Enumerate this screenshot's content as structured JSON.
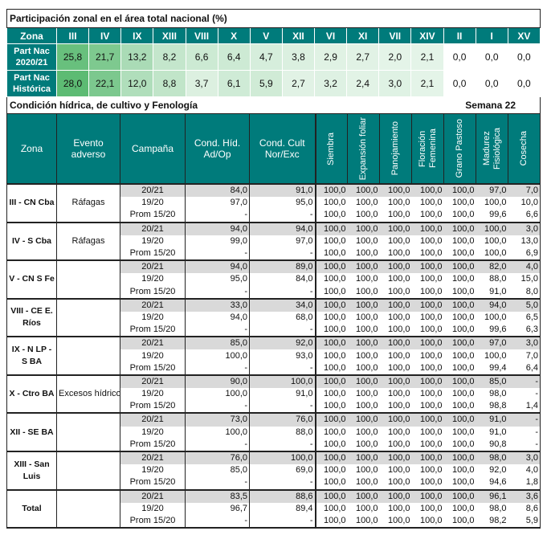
{
  "top": {
    "title": "Participación zonal en el área total nacional (%)",
    "header_label": "Zona",
    "zones": [
      "III",
      "IV",
      "IX",
      "XIII",
      "VIII",
      "X",
      "V",
      "XII",
      "VI",
      "XI",
      "VII",
      "XIV",
      "II",
      "I",
      "XV"
    ],
    "rows": [
      {
        "label": [
          "Part Nac",
          "2020/21"
        ],
        "values": [
          "25,8",
          "21,7",
          "13,2",
          "8,2",
          "6,6",
          "6,4",
          "4,7",
          "3,8",
          "2,9",
          "2,7",
          "2,0",
          "2,1",
          "0,0",
          "0,0",
          "0,0"
        ]
      },
      {
        "label": [
          "Part Nac",
          "Histórica"
        ],
        "values": [
          "28,0",
          "22,1",
          "12,0",
          "8,8",
          "3,7",
          "6,1",
          "5,9",
          "2,7",
          "3,2",
          "2,4",
          "3,0",
          "2,1",
          "0,0",
          "0,0",
          "0,0"
        ]
      }
    ],
    "heat_colors": {
      "high": "#5dbb73",
      "low": "#ffffff"
    }
  },
  "section": {
    "title": "Condición hídrica, de cultivo y Fenología",
    "week": "Semana 22"
  },
  "headers": [
    "Zona",
    "Evento adverso",
    "Campaña",
    "Cond. Híd. Ad/Op",
    "Cond. Cult Nor/Exc",
    "Siembra",
    "Expansión foliar",
    "Panojamiento",
    "Floración Femenina",
    "Grano Pastoso",
    "Madurez Fisiológica",
    "Cosecha"
  ],
  "colors": {
    "header": "#007b7b",
    "shade": "#d9d9d9"
  },
  "zones": [
    {
      "zona": "III - CN Cba",
      "evento": "Ráfagas",
      "rows": [
        [
          "20/21",
          "84,0",
          "91,0",
          "100,0",
          "100,0",
          "100,0",
          "100,0",
          "100,0",
          "97,0",
          "7,0"
        ],
        [
          "19/20",
          "97,0",
          "95,0",
          "100,0",
          "100,0",
          "100,0",
          "100,0",
          "100,0",
          "100,0",
          "10,0"
        ],
        [
          "Prom 15/20",
          "-",
          "-",
          "100,0",
          "100,0",
          "100,0",
          "100,0",
          "100,0",
          "99,6",
          "6,6"
        ]
      ]
    },
    {
      "zona": "IV - S Cba",
      "evento": "Ráfagas",
      "rows": [
        [
          "20/21",
          "94,0",
          "94,0",
          "100,0",
          "100,0",
          "100,0",
          "100,0",
          "100,0",
          "100,0",
          "3,0"
        ],
        [
          "19/20",
          "99,0",
          "97,0",
          "100,0",
          "100,0",
          "100,0",
          "100,0",
          "100,0",
          "100,0",
          "13,0"
        ],
        [
          "Prom 15/20",
          "-",
          "-",
          "100,0",
          "100,0",
          "100,0",
          "100,0",
          "100,0",
          "100,0",
          "6,9"
        ]
      ]
    },
    {
      "zona": "V - CN S Fe",
      "evento": "",
      "rows": [
        [
          "20/21",
          "94,0",
          "89,0",
          "100,0",
          "100,0",
          "100,0",
          "100,0",
          "100,0",
          "82,0",
          "4,0"
        ],
        [
          "19/20",
          "95,0",
          "84,0",
          "100,0",
          "100,0",
          "100,0",
          "100,0",
          "100,0",
          "88,0",
          "15,0"
        ],
        [
          "Prom 15/20",
          "-",
          "-",
          "100,0",
          "100,0",
          "100,0",
          "100,0",
          "100,0",
          "91,0",
          "8,0"
        ]
      ]
    },
    {
      "zona": "VIII - CE E. Ríos",
      "evento": "",
      "rows": [
        [
          "20/21",
          "33,0",
          "34,0",
          "100,0",
          "100,0",
          "100,0",
          "100,0",
          "100,0",
          "94,0",
          "5,0"
        ],
        [
          "19/20",
          "94,0",
          "68,0",
          "100,0",
          "100,0",
          "100,0",
          "100,0",
          "100,0",
          "100,0",
          "6,5"
        ],
        [
          "Prom 15/20",
          "-",
          "-",
          "100,0",
          "100,0",
          "100,0",
          "100,0",
          "100,0",
          "99,6",
          "6,3"
        ]
      ]
    },
    {
      "zona": "IX - N LP - S BA",
      "evento": "",
      "rows": [
        [
          "20/21",
          "85,0",
          "92,0",
          "100,0",
          "100,0",
          "100,0",
          "100,0",
          "100,0",
          "97,0",
          "3,0"
        ],
        [
          "19/20",
          "100,0",
          "93,0",
          "100,0",
          "100,0",
          "100,0",
          "100,0",
          "100,0",
          "100,0",
          "7,0"
        ],
        [
          "Prom 15/20",
          "-",
          "-",
          "100,0",
          "100,0",
          "100,0",
          "100,0",
          "100,0",
          "99,4",
          "6,4"
        ]
      ]
    },
    {
      "zona": "X - Ctro BA",
      "evento": "Excesos hídricos",
      "rows": [
        [
          "20/21",
          "90,0",
          "100,0",
          "100,0",
          "100,0",
          "100,0",
          "100,0",
          "100,0",
          "85,0",
          "-"
        ],
        [
          "19/20",
          "100,0",
          "91,0",
          "100,0",
          "100,0",
          "100,0",
          "100,0",
          "100,0",
          "98,0",
          "-"
        ],
        [
          "Prom 15/20",
          "-",
          "-",
          "100,0",
          "100,0",
          "100,0",
          "100,0",
          "100,0",
          "98,8",
          "1,4"
        ]
      ]
    },
    {
      "zona": "XII - SE BA",
      "evento": "",
      "rows": [
        [
          "20/21",
          "73,0",
          "76,0",
          "100,0",
          "100,0",
          "100,0",
          "100,0",
          "100,0",
          "91,0",
          "-"
        ],
        [
          "19/20",
          "100,0",
          "88,0",
          "100,0",
          "100,0",
          "100,0",
          "100,0",
          "100,0",
          "91,0",
          "-"
        ],
        [
          "Prom 15/20",
          "-",
          "-",
          "100,0",
          "100,0",
          "100,0",
          "100,0",
          "100,0",
          "90,8",
          "-"
        ]
      ]
    },
    {
      "zona": "XIII - San Luis",
      "evento": "",
      "rows": [
        [
          "20/21",
          "76,0",
          "100,0",
          "100,0",
          "100,0",
          "100,0",
          "100,0",
          "100,0",
          "98,0",
          "3,0"
        ],
        [
          "19/20",
          "85,0",
          "69,0",
          "100,0",
          "100,0",
          "100,0",
          "100,0",
          "100,0",
          "92,0",
          "4,0"
        ],
        [
          "Prom 15/20",
          "-",
          "-",
          "100,0",
          "100,0",
          "100,0",
          "100,0",
          "100,0",
          "94,6",
          "1,8"
        ]
      ]
    },
    {
      "zona": "Total",
      "evento": "",
      "rows": [
        [
          "20/21",
          "83,5",
          "88,6",
          "100,0",
          "100,0",
          "100,0",
          "100,0",
          "100,0",
          "96,1",
          "3,6"
        ],
        [
          "19/20",
          "96,7",
          "89,4",
          "100,0",
          "100,0",
          "100,0",
          "100,0",
          "100,0",
          "98,0",
          "8,6"
        ],
        [
          "Prom 15/20",
          "-",
          "-",
          "100,0",
          "100,0",
          "100,0",
          "100,0",
          "100,0",
          "98,2",
          "5,9"
        ]
      ]
    }
  ]
}
